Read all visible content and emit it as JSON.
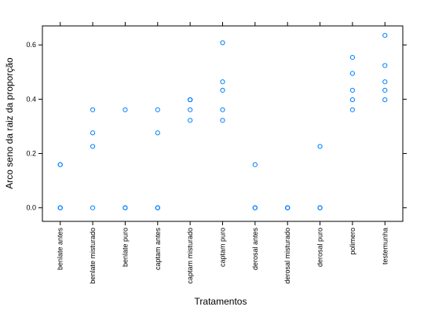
{
  "chart_data": {
    "type": "scatter",
    "title": "",
    "xlabel": "Tratamentos",
    "ylabel": "Arco seno da raiz da proporção",
    "ylim": [
      -0.05,
      0.67
    ],
    "yticks": [
      "0.0",
      "0.2",
      "0.4",
      "0.6"
    ],
    "categories": [
      "benlate antes",
      "benlate misturado",
      "benlate puro",
      "captam antes",
      "captam misturado",
      "captam puro",
      "derosal antes",
      "derosal misturado",
      "derosal puro",
      "polimero",
      "testemunha"
    ],
    "series": [
      {
        "points": [
          {
            "x": "benlate antes",
            "y": 0.0
          },
          {
            "x": "benlate antes",
            "y": 0.0
          },
          {
            "x": "benlate antes",
            "y": 0.0
          },
          {
            "x": "benlate antes",
            "y": 0.159
          },
          {
            "x": "benlate antes",
            "y": 0.159
          },
          {
            "x": "benlate misturado",
            "y": 0.0
          },
          {
            "x": "benlate misturado",
            "y": 0.226
          },
          {
            "x": "benlate misturado",
            "y": 0.276
          },
          {
            "x": "benlate misturado",
            "y": 0.361
          },
          {
            "x": "benlate puro",
            "y": 0.0
          },
          {
            "x": "benlate puro",
            "y": 0.0
          },
          {
            "x": "benlate puro",
            "y": 0.0
          },
          {
            "x": "benlate puro",
            "y": 0.361
          },
          {
            "x": "captam antes",
            "y": 0.0
          },
          {
            "x": "captam antes",
            "y": 0.0
          },
          {
            "x": "captam antes",
            "y": 0.0
          },
          {
            "x": "captam antes",
            "y": 0.276
          },
          {
            "x": "captam antes",
            "y": 0.361
          },
          {
            "x": "captam misturado",
            "y": 0.322
          },
          {
            "x": "captam misturado",
            "y": 0.361
          },
          {
            "x": "captam misturado",
            "y": 0.398
          },
          {
            "x": "captam misturado",
            "y": 0.398
          },
          {
            "x": "captam misturado",
            "y": 0.398
          },
          {
            "x": "captam puro",
            "y": 0.322
          },
          {
            "x": "captam puro",
            "y": 0.361
          },
          {
            "x": "captam puro",
            "y": 0.433
          },
          {
            "x": "captam puro",
            "y": 0.464
          },
          {
            "x": "captam puro",
            "y": 0.608
          },
          {
            "x": "derosal antes",
            "y": 0.0
          },
          {
            "x": "derosal antes",
            "y": 0.0
          },
          {
            "x": "derosal antes",
            "y": 0.0
          },
          {
            "x": "derosal antes",
            "y": 0.159
          },
          {
            "x": "derosal misturado",
            "y": 0.0
          },
          {
            "x": "derosal misturado",
            "y": 0.0
          },
          {
            "x": "derosal misturado",
            "y": 0.0
          },
          {
            "x": "derosal misturado",
            "y": 0.0
          },
          {
            "x": "derosal puro",
            "y": 0.0
          },
          {
            "x": "derosal puro",
            "y": 0.0
          },
          {
            "x": "derosal puro",
            "y": 0.0
          },
          {
            "x": "derosal puro",
            "y": 0.226
          },
          {
            "x": "polimero",
            "y": 0.361
          },
          {
            "x": "polimero",
            "y": 0.398
          },
          {
            "x": "polimero",
            "y": 0.433
          },
          {
            "x": "polimero",
            "y": 0.495
          },
          {
            "x": "polimero",
            "y": 0.554
          },
          {
            "x": "testemunha",
            "y": 0.398
          },
          {
            "x": "testemunha",
            "y": 0.433
          },
          {
            "x": "testemunha",
            "y": 0.464
          },
          {
            "x": "testemunha",
            "y": 0.524
          },
          {
            "x": "testemunha",
            "y": 0.635
          }
        ]
      }
    ],
    "grid": false,
    "legend": "none",
    "colors": {
      "point": "#0080ff",
      "axis": "#000000"
    }
  }
}
